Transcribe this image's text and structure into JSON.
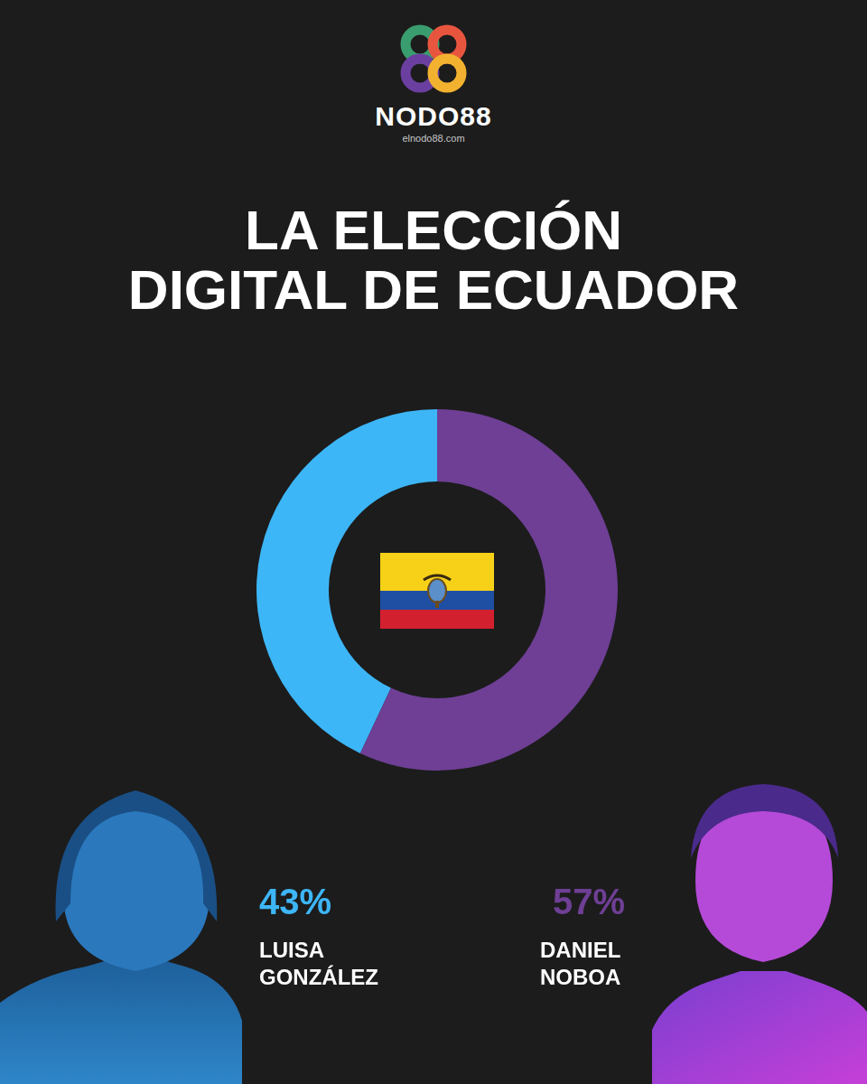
{
  "header": {
    "brand": "NODO88",
    "url": "elnodo88.com"
  },
  "chart_data": {
    "type": "doughnut",
    "title": "LA ELECCIÓN DIGITAL DE ECUADOR",
    "categories": [
      "LUISA GONZÁLEZ",
      "DANIEL NOBOA"
    ],
    "values": [
      43,
      57
    ],
    "value_labels": [
      "43%",
      "57%"
    ],
    "colors": [
      "#3db6f7",
      "#6e3f95"
    ],
    "data_labels": true
  }
}
